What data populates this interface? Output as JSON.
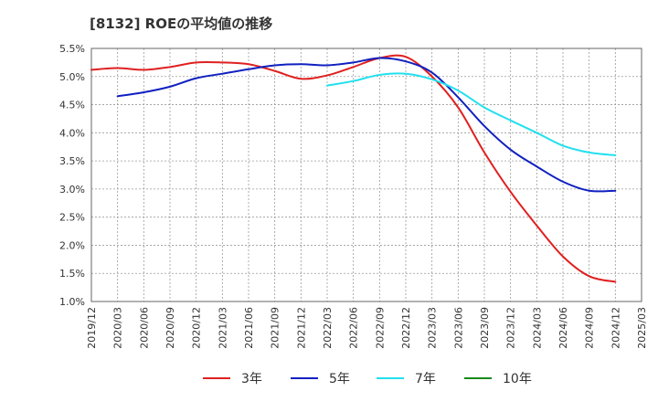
{
  "chart_data": {
    "type": "line",
    "title": "[8132]  ROEの平均値の推移",
    "xlabel": "",
    "ylabel": "",
    "x": [
      "2019/12",
      "2020/03",
      "2020/06",
      "2020/09",
      "2020/12",
      "2021/03",
      "2021/06",
      "2021/09",
      "2021/12",
      "2022/03",
      "2022/06",
      "2022/09",
      "2022/12",
      "2023/03",
      "2023/06",
      "2023/09",
      "2023/12",
      "2024/03",
      "2024/06",
      "2024/09",
      "2024/12",
      "2025/03"
    ],
    "yticks": [
      "1.0%",
      "1.5%",
      "2.0%",
      "2.5%",
      "3.0%",
      "3.5%",
      "4.0%",
      "4.5%",
      "5.0%",
      "5.5%"
    ],
    "ylim": [
      1.0,
      5.5
    ],
    "grid": true,
    "legend_position": "bottom",
    "series": [
      {
        "name": "3年",
        "color": "#e02020",
        "values": [
          5.12,
          5.15,
          5.12,
          5.17,
          5.25,
          5.25,
          5.22,
          5.1,
          4.96,
          5.02,
          5.17,
          5.33,
          5.35,
          5.0,
          4.45,
          3.65,
          2.95,
          2.35,
          1.8,
          1.45,
          1.35,
          null
        ]
      },
      {
        "name": "5年",
        "color": "#1020c0",
        "values": [
          null,
          4.65,
          4.72,
          4.82,
          4.97,
          5.05,
          5.13,
          5.2,
          5.22,
          5.2,
          5.25,
          5.33,
          5.27,
          5.07,
          4.63,
          4.12,
          3.7,
          3.4,
          3.13,
          2.97,
          2.97,
          null
        ]
      },
      {
        "name": "7年",
        "color": "#22e0ee",
        "values": [
          null,
          null,
          null,
          null,
          null,
          null,
          null,
          null,
          null,
          4.84,
          4.92,
          5.03,
          5.05,
          4.95,
          4.75,
          4.45,
          4.22,
          4.0,
          3.77,
          3.65,
          3.6,
          null
        ]
      },
      {
        "name": "10年",
        "color": "#1a8a1a",
        "values": [
          null,
          null,
          null,
          null,
          null,
          null,
          null,
          null,
          null,
          null,
          null,
          null,
          null,
          null,
          null,
          null,
          null,
          null,
          null,
          null,
          null,
          null
        ]
      }
    ]
  }
}
